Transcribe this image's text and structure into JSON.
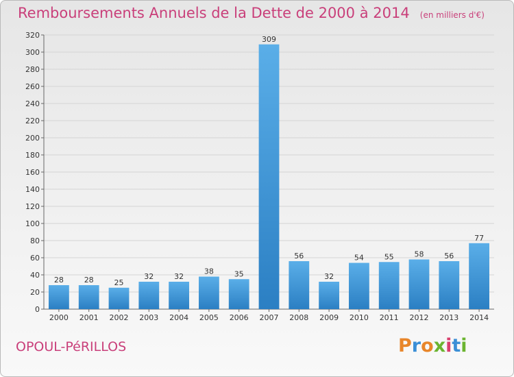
{
  "header": {
    "title": "Remboursements Annuels de la Dette de 2000 à 2014",
    "subtitle": "(en milliers d'€)"
  },
  "footer": {
    "place": "OPOUL-PéRILLOS",
    "logo_text": "Proxiti",
    "logo_colors": [
      "#e8862a",
      "#3b8fd6",
      "#e8862a",
      "#6bb430",
      "#d93f6e",
      "#3b8fd6",
      "#6bb430"
    ]
  },
  "colors": {
    "bar_light": "#5aaee8",
    "bar_dark": "#2b7fc3",
    "title": "#c93f7a",
    "grid": "#d4d4d4"
  },
  "chart_data": {
    "type": "bar",
    "title": "Remboursements Annuels de la Dette de 2000 à 2014",
    "subtitle": "(en milliers d'€)",
    "categories": [
      "2000",
      "2001",
      "2002",
      "2003",
      "2004",
      "2005",
      "2006",
      "2007",
      "2008",
      "2009",
      "2010",
      "2011",
      "2012",
      "2013",
      "2014"
    ],
    "values": [
      28,
      28,
      25,
      32,
      32,
      38,
      35,
      309,
      56,
      32,
      54,
      55,
      58,
      56,
      77
    ],
    "ylim": [
      0,
      320
    ],
    "yticks": [
      0,
      20,
      40,
      60,
      80,
      100,
      120,
      140,
      160,
      180,
      200,
      220,
      240,
      260,
      280,
      300,
      320
    ],
    "grid": true,
    "data_labels": true
  }
}
